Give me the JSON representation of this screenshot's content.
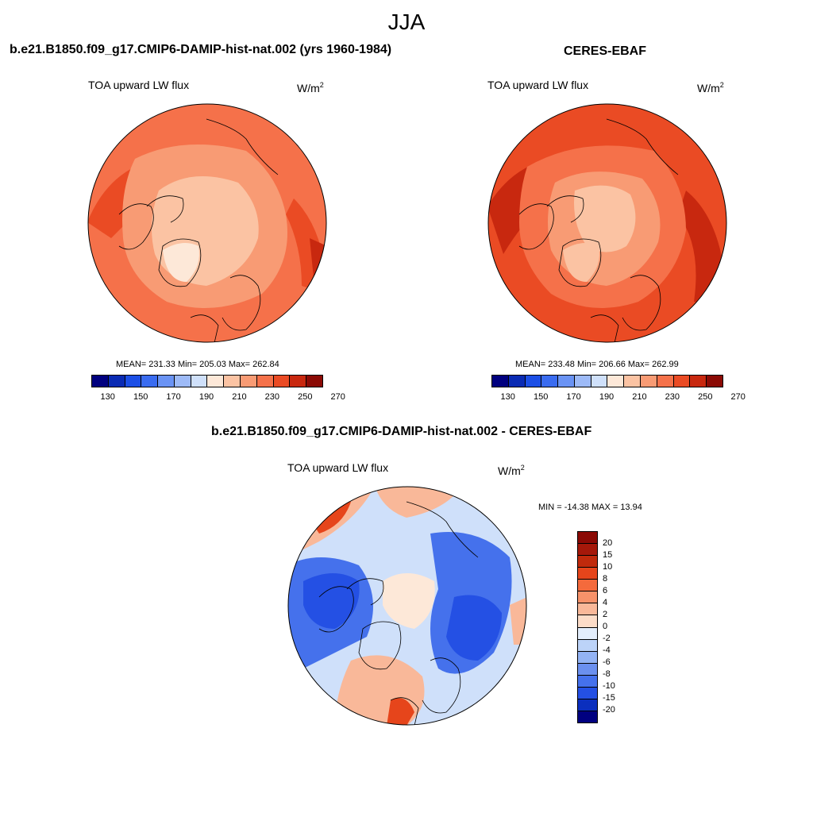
{
  "season": "JJA",
  "panels": [
    {
      "title": "b.e21.B1850.f09_g17.CMIP6-DAMIP-hist-nat.002 (yrs 1960-1984)",
      "variable": "TOA upward LW flux",
      "unit": "W/m",
      "unit_sup": "2",
      "stats": "MEAN= 231.33  Min= 205.03  Max= 262.84"
    },
    {
      "title": "CERES-EBAF",
      "variable": "TOA upward LW flux",
      "unit": "W/m",
      "unit_sup": "2",
      "stats": "MEAN= 233.48  Min= 206.66  Max= 262.99"
    },
    {
      "title": "b.e21.B1850.f09_g17.CMIP6-DAMIP-hist-nat.002 - CERES-EBAF",
      "variable": "TOA upward LW flux",
      "unit": "W/m",
      "unit_sup": "2",
      "stats": "MIN = -14.38 MAX =  13.94"
    }
  ],
  "colorbar_abs": {
    "colors": [
      "#00007f",
      "#0a2bb4",
      "#1c4fe6",
      "#3a6cf0",
      "#6a93f4",
      "#9dbaf7",
      "#cfe0fa",
      "#fde8d8",
      "#fbc3a3",
      "#f89b74",
      "#f5714a",
      "#ea4b24",
      "#c8280f",
      "#8b0a05"
    ],
    "ticks": [
      "130",
      "150",
      "170",
      "190",
      "210",
      "230",
      "250",
      "270"
    ]
  },
  "colorbar_diff": {
    "colors": [
      "#8b0a05",
      "#c02a0c",
      "#e6451b",
      "#f46a3c",
      "#f7926a",
      "#f9b899",
      "#fcdcc8",
      "#e3eefc",
      "#bcd3f8",
      "#93b3f4",
      "#6b90ef",
      "#4571ec",
      "#2450e4",
      "#0b2fbe",
      "#000080"
    ],
    "ticks": [
      "20",
      "15",
      "10",
      "8",
      "6",
      "4",
      "2",
      "0",
      "-2",
      "-4",
      "-6",
      "-8",
      "-10",
      "-15",
      "-20"
    ]
  },
  "map_colors": {
    "abs_base": "#f5714a",
    "abs_low": "#fbc3a3",
    "abs_mid": "#f89b74",
    "abs_high": "#ea4b24",
    "abs_peak": "#c8280f",
    "abs_lowest": "#fde8d8",
    "diff_base": "#cfe0fa",
    "diff_neg": "#4571ec",
    "diff_neg_strong": "#2450e4",
    "diff_pos": "#f9b899",
    "diff_pos_strong": "#e6451b",
    "diff_zero": "#fde8d8"
  }
}
